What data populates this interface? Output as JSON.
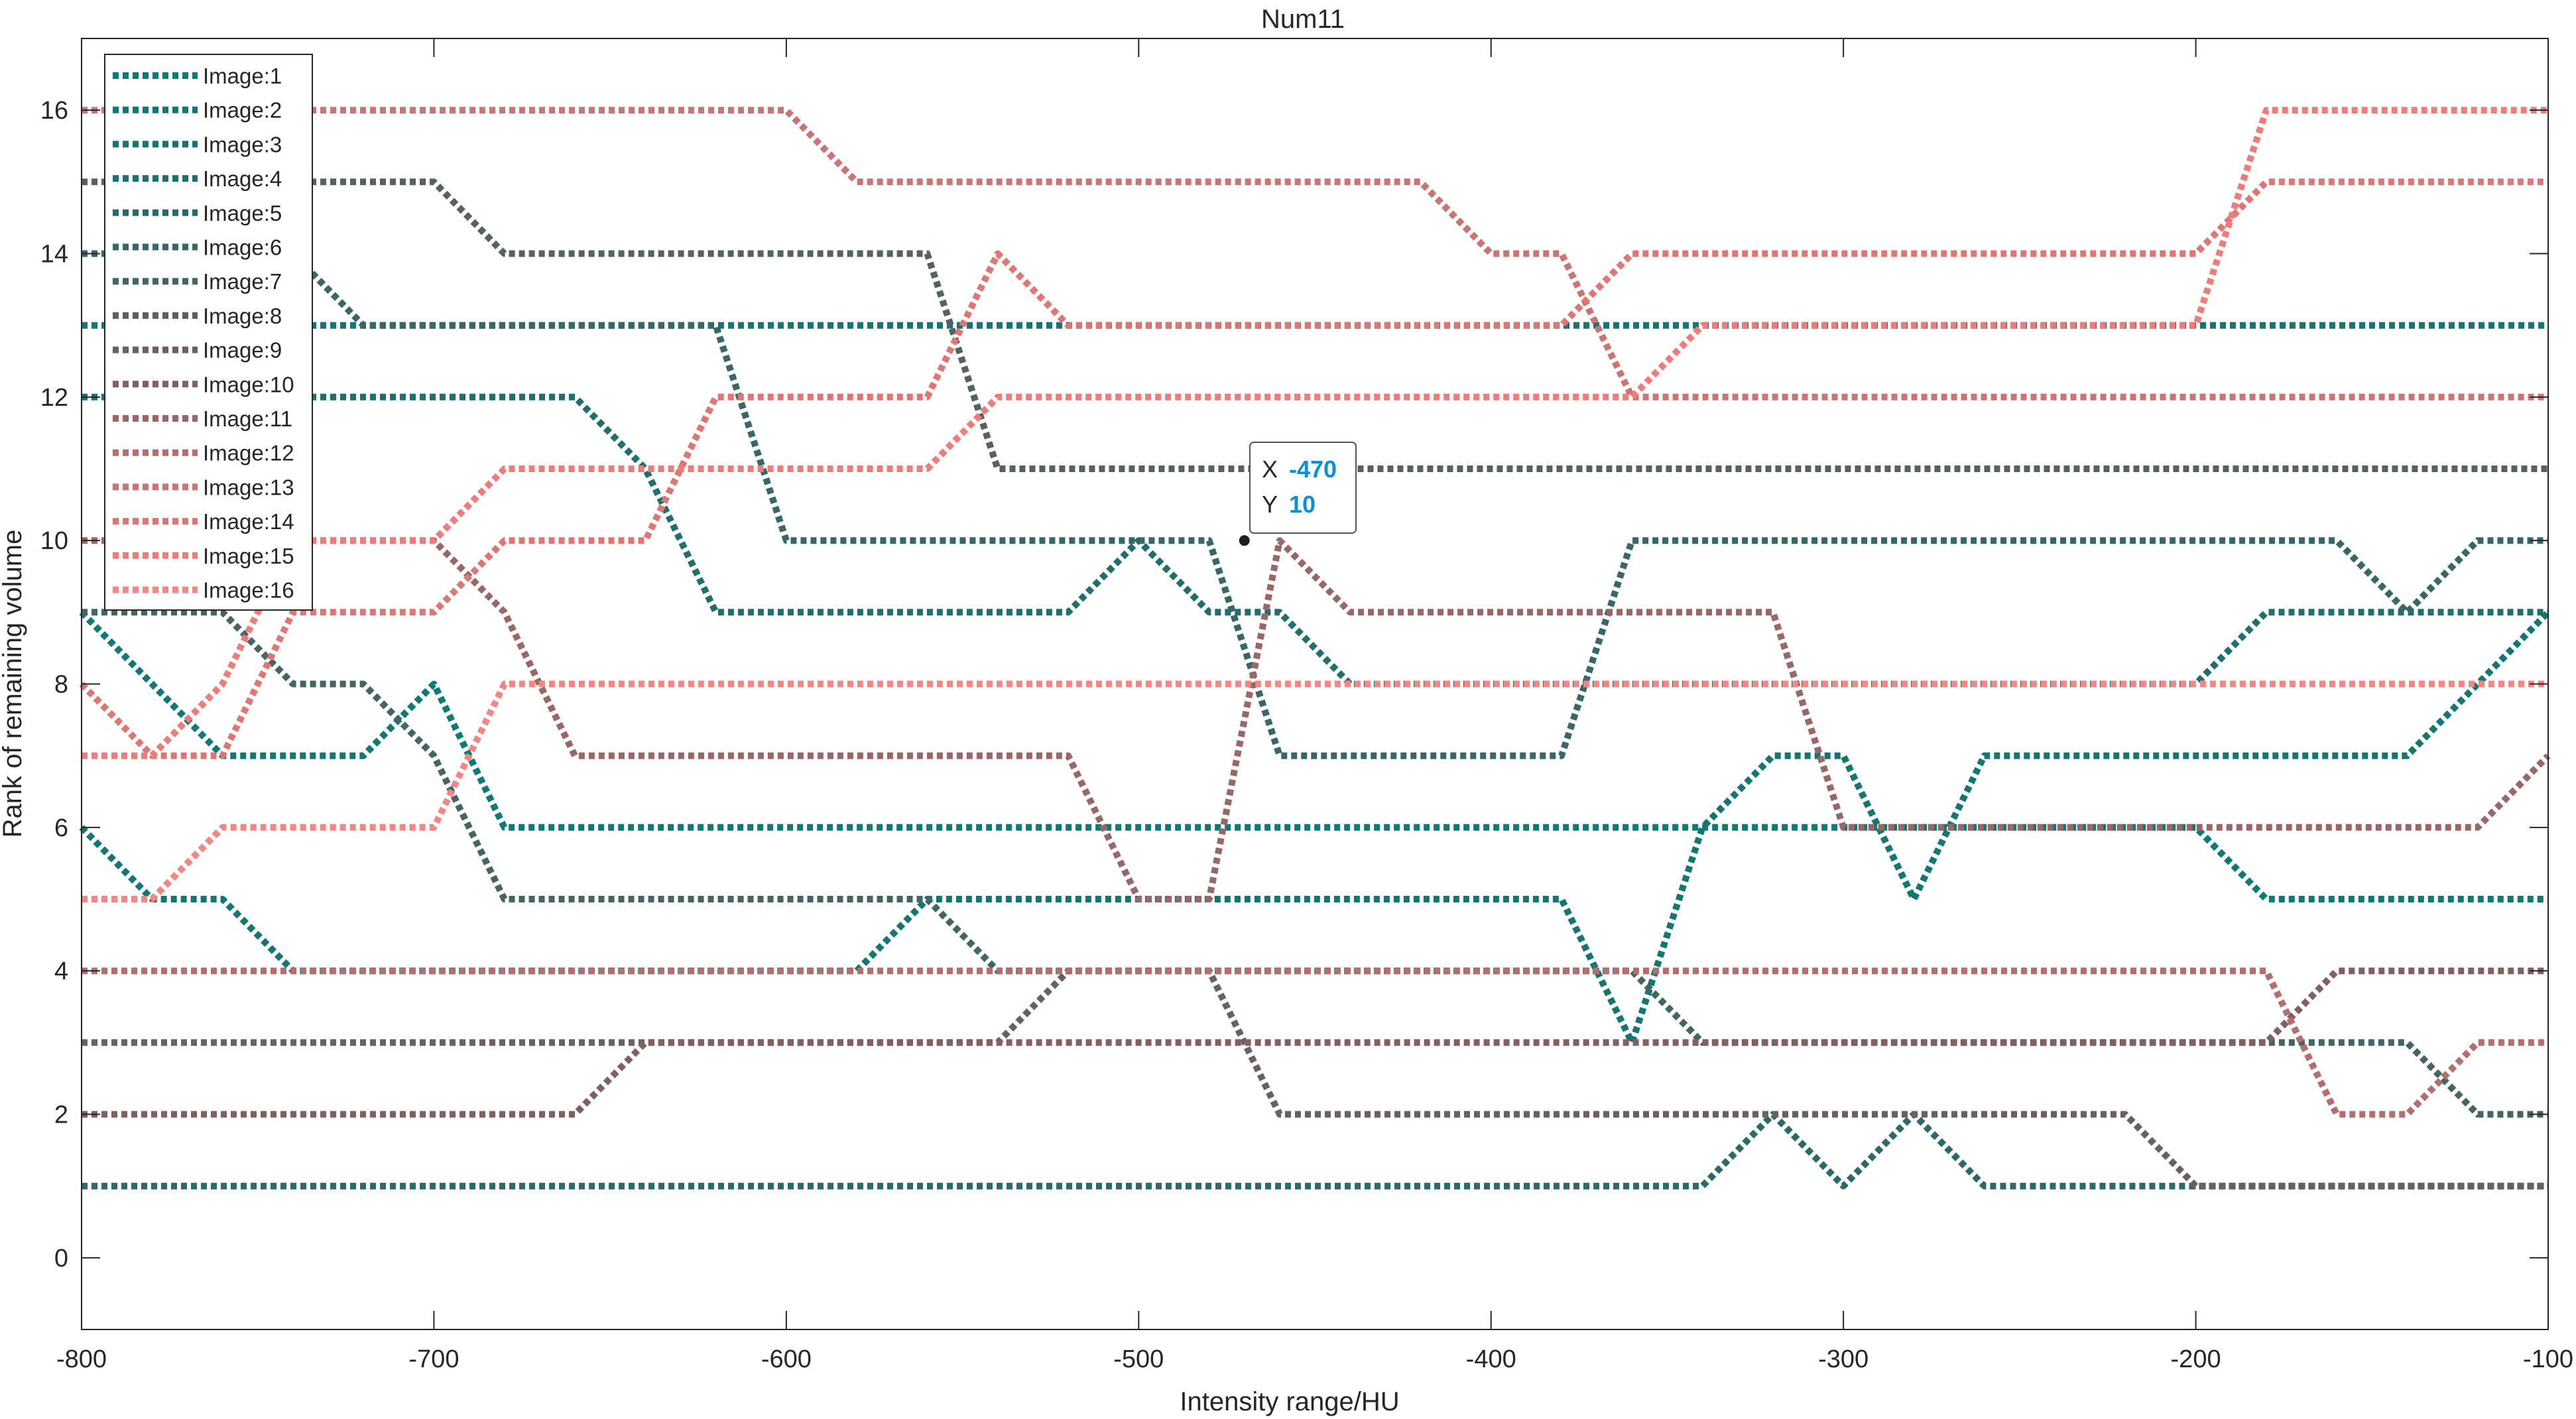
{
  "chart_data": {
    "type": "line",
    "title": "Num11",
    "xlabel": "Intensity range/HU",
    "ylabel": "Rank of remaining volume",
    "xlim": [
      -800,
      -100
    ],
    "ylim": [
      -1,
      17
    ],
    "xticks": [
      -800,
      -700,
      -600,
      -500,
      -400,
      -300,
      -200,
      -100
    ],
    "yticks": [
      0,
      2,
      4,
      6,
      8,
      10,
      12,
      14,
      16
    ],
    "grid": false,
    "legend_position": "top-left",
    "line_style": "dotted",
    "series": [
      {
        "name": "Image:1",
        "color": "#0E7A75",
        "x": [
          -800,
          -780,
          -760,
          -740,
          -720,
          -700,
          -680,
          -660,
          -640,
          -620,
          -600,
          -580,
          -560,
          -540,
          -520,
          -500,
          -480,
          -460,
          -440,
          -420,
          -400,
          -380,
          -360,
          -340,
          -320,
          -300,
          -280,
          -260,
          -240,
          -220,
          -200,
          -180,
          -160,
          -140,
          -120,
          -100
        ],
        "y": [
          9,
          8,
          7,
          7,
          7,
          8,
          6,
          6,
          6,
          6,
          6,
          6,
          6,
          6,
          6,
          6,
          6,
          6,
          6,
          6,
          6,
          6,
          6,
          6,
          6,
          6,
          6,
          6,
          6,
          6,
          6,
          5,
          5,
          5,
          5,
          5
        ]
      },
      {
        "name": "Image:2",
        "color": "#127773",
        "x": [
          -800,
          -780,
          -760,
          -740,
          -720,
          -700,
          -680,
          -660,
          -640,
          -620,
          -600,
          -580,
          -560,
          -540,
          -520,
          -500,
          -480,
          -460,
          -440,
          -420,
          -400,
          -380,
          -360,
          -340,
          -320,
          -300,
          -280,
          -260,
          -240,
          -220,
          -200,
          -180,
          -160,
          -140,
          -120,
          -100
        ],
        "y": [
          6,
          5,
          5,
          4,
          4,
          4,
          4,
          4,
          4,
          4,
          4,
          4,
          5,
          5,
          5,
          5,
          5,
          5,
          5,
          5,
          5,
          5,
          3,
          6,
          7,
          7,
          5,
          7,
          7,
          7,
          7,
          7,
          7,
          7,
          8,
          9
        ]
      },
      {
        "name": "Image:3",
        "color": "#177471",
        "x": [
          -800,
          -780,
          -760,
          -740,
          -720,
          -700,
          -680,
          -660,
          -640,
          -620,
          -600,
          -580,
          -560,
          -540,
          -520,
          -500,
          -480,
          -460,
          -440,
          -420,
          -400,
          -380,
          -360,
          -340,
          -320,
          -300,
          -280,
          -260,
          -240,
          -220,
          -200,
          -180,
          -160,
          -140,
          -120,
          -100
        ],
        "y": [
          13,
          13,
          13,
          13,
          13,
          13,
          13,
          13,
          13,
          13,
          13,
          13,
          13,
          13,
          13,
          13,
          13,
          13,
          13,
          13,
          13,
          13,
          13,
          13,
          13,
          13,
          13,
          13,
          13,
          13,
          13,
          13,
          13,
          13,
          13,
          13
        ]
      },
      {
        "name": "Image:4",
        "color": "#1F6F6D",
        "x": [
          -800,
          -780,
          -760,
          -740,
          -720,
          -700,
          -680,
          -660,
          -640,
          -620,
          -600,
          -580,
          -560,
          -540,
          -520,
          -500,
          -480,
          -460,
          -440,
          -420,
          -400,
          -380,
          -360,
          -340,
          -320,
          -300,
          -280,
          -260,
          -240,
          -220,
          -200,
          -180,
          -160,
          -140,
          -120,
          -100
        ],
        "y": [
          12,
          12,
          12,
          12,
          12,
          12,
          12,
          12,
          11,
          9,
          9,
          9,
          9,
          9,
          9,
          10,
          9,
          9,
          8,
          8,
          8,
          8,
          8,
          8,
          8,
          8,
          8,
          8,
          8,
          8,
          8,
          9,
          9,
          9,
          9,
          9
        ]
      },
      {
        "name": "Image:5",
        "color": "#2B6A69",
        "x": [
          -800,
          -780,
          -760,
          -740,
          -720,
          -700,
          -680,
          -660,
          -640,
          -620,
          -600,
          -580,
          -560,
          -540,
          -520,
          -500,
          -480,
          -460,
          -440,
          -420,
          -400,
          -380,
          -360,
          -340,
          -320,
          -300,
          -280,
          -260,
          -240,
          -220,
          -200,
          -180,
          -160,
          -140,
          -120,
          -100
        ],
        "y": [
          1,
          1,
          1,
          1,
          1,
          1,
          1,
          1,
          1,
          1,
          1,
          1,
          1,
          1,
          1,
          1,
          1,
          1,
          1,
          1,
          1,
          1,
          1,
          1,
          2,
          1,
          2,
          1,
          1,
          1,
          1,
          1,
          1,
          1,
          1,
          1
        ]
      },
      {
        "name": "Image:6",
        "color": "#376766",
        "x": [
          -800,
          -780,
          -760,
          -740,
          -720,
          -700,
          -680,
          -660,
          -640,
          -620,
          -600,
          -580,
          -560,
          -540,
          -520,
          -500,
          -480,
          -460,
          -440,
          -420,
          -400,
          -380,
          -360,
          -340,
          -320,
          -300,
          -280,
          -260,
          -240,
          -220,
          -200,
          -180,
          -160,
          -140,
          -120,
          -100
        ],
        "y": [
          14,
          14,
          14,
          14,
          13,
          13,
          13,
          13,
          13,
          13,
          10,
          10,
          10,
          10,
          10,
          10,
          10,
          7,
          7,
          7,
          7,
          7,
          10,
          10,
          10,
          10,
          10,
          10,
          10,
          10,
          10,
          10,
          10,
          9,
          10,
          10
        ]
      },
      {
        "name": "Image:7",
        "color": "#456564",
        "x": [
          -800,
          -780,
          -760,
          -740,
          -720,
          -700,
          -680,
          -660,
          -640,
          -620,
          -600,
          -580,
          -560,
          -540,
          -520,
          -500,
          -480,
          -460,
          -440,
          -420,
          -400,
          -380,
          -360,
          -340,
          -320,
          -300,
          -280,
          -260,
          -240,
          -220,
          -200,
          -180,
          -160,
          -140,
          -120,
          -100
        ],
        "y": [
          9,
          9,
          9,
          8,
          8,
          7,
          5,
          5,
          5,
          5,
          5,
          5,
          5,
          4,
          4,
          4,
          4,
          4,
          4,
          4,
          4,
          4,
          4,
          3,
          3,
          3,
          3,
          3,
          3,
          3,
          3,
          3,
          3,
          3,
          2,
          2
        ]
      },
      {
        "name": "Image:8",
        "color": "#566262",
        "x": [
          -800,
          -780,
          -760,
          -740,
          -720,
          -700,
          -680,
          -660,
          -640,
          -620,
          -600,
          -580,
          -560,
          -540,
          -520,
          -500,
          -480,
          -460,
          -440,
          -420,
          -400,
          -380,
          -360,
          -340,
          -320,
          -300,
          -280,
          -260,
          -240,
          -220,
          -200,
          -180,
          -160,
          -140,
          -120,
          -100
        ],
        "y": [
          15,
          15,
          15,
          15,
          15,
          15,
          14,
          14,
          14,
          14,
          14,
          14,
          14,
          11,
          11,
          11,
          11,
          11,
          11,
          11,
          11,
          11,
          11,
          11,
          11,
          11,
          11,
          11,
          11,
          11,
          11,
          11,
          11,
          11,
          11,
          11
        ]
      },
      {
        "name": "Image:9",
        "color": "#6A6060",
        "x": [
          -800,
          -780,
          -760,
          -740,
          -720,
          -700,
          -680,
          -660,
          -640,
          -620,
          -600,
          -580,
          -560,
          -540,
          -520,
          -500,
          -480,
          -460,
          -440,
          -420,
          -400,
          -380,
          -360,
          -340,
          -320,
          -300,
          -280,
          -260,
          -240,
          -220,
          -200,
          -180,
          -160,
          -140,
          -120,
          -100
        ],
        "y": [
          3,
          3,
          3,
          3,
          3,
          3,
          3,
          3,
          3,
          3,
          3,
          3,
          3,
          3,
          4,
          4,
          4,
          2,
          2,
          2,
          2,
          2,
          2,
          2,
          2,
          2,
          2,
          2,
          2,
          2,
          1,
          1,
          1,
          1,
          1,
          1
        ]
      },
      {
        "name": "Image:10",
        "color": "#826060",
        "x": [
          -800,
          -780,
          -760,
          -740,
          -720,
          -700,
          -680,
          -660,
          -640,
          -620,
          -600,
          -580,
          -560,
          -540,
          -520,
          -500,
          -480,
          -460,
          -440,
          -420,
          -400,
          -380,
          -360,
          -340,
          -320,
          -300,
          -280,
          -260,
          -240,
          -220,
          -200,
          -180,
          -160,
          -140,
          -120,
          -100
        ],
        "y": [
          2,
          2,
          2,
          2,
          2,
          2,
          2,
          2,
          3,
          3,
          3,
          3,
          3,
          3,
          3,
          3,
          3,
          3,
          3,
          3,
          3,
          3,
          3,
          3,
          3,
          3,
          3,
          3,
          3,
          3,
          3,
          3,
          4,
          4,
          4,
          4
        ]
      },
      {
        "name": "Image:11",
        "color": "#9B6766",
        "x": [
          -800,
          -780,
          -760,
          -740,
          -720,
          -700,
          -680,
          -660,
          -640,
          -620,
          -600,
          -580,
          -560,
          -540,
          -520,
          -500,
          -480,
          -460,
          -440,
          -420,
          -400,
          -380,
          -360,
          -340,
          -320,
          -300,
          -280,
          -260,
          -240,
          -220,
          -200,
          -180,
          -160,
          -140,
          -120,
          -100
        ],
        "y": [
          10,
          10,
          10,
          10,
          10,
          10,
          9,
          7,
          7,
          7,
          7,
          7,
          7,
          7,
          7,
          5,
          5,
          10,
          9,
          9,
          9,
          9,
          9,
          9,
          9,
          6,
          6,
          6,
          6,
          6,
          6,
          6,
          6,
          6,
          6,
          7
        ]
      },
      {
        "name": "Image:12",
        "color": "#B46E6D",
        "x": [
          -800,
          -780,
          -760,
          -740,
          -720,
          -700,
          -680,
          -660,
          -640,
          -620,
          -600,
          -580,
          -560,
          -540,
          -520,
          -500,
          -480,
          -460,
          -440,
          -420,
          -400,
          -380,
          -360,
          -340,
          -320,
          -300,
          -280,
          -260,
          -240,
          -220,
          -200,
          -180,
          -160,
          -140,
          -120,
          -100
        ],
        "y": [
          4,
          4,
          4,
          4,
          4,
          4,
          4,
          4,
          4,
          4,
          4,
          4,
          4,
          4,
          4,
          4,
          4,
          4,
          4,
          4,
          4,
          4,
          4,
          4,
          4,
          4,
          4,
          4,
          4,
          4,
          4,
          4,
          2,
          2,
          3,
          3
        ]
      },
      {
        "name": "Image:13",
        "color": "#CC7473",
        "x": [
          -800,
          -780,
          -760,
          -740,
          -720,
          -700,
          -680,
          -660,
          -640,
          -620,
          -600,
          -580,
          -560,
          -540,
          -520,
          -500,
          -480,
          -460,
          -440,
          -420,
          -400,
          -380,
          -360,
          -340,
          -320,
          -300,
          -280,
          -260,
          -240,
          -220,
          -200,
          -180,
          -160,
          -140,
          -120,
          -100
        ],
        "y": [
          16,
          16,
          16,
          16,
          16,
          16,
          16,
          16,
          16,
          16,
          16,
          15,
          15,
          15,
          15,
          15,
          15,
          15,
          15,
          15,
          14,
          14,
          12,
          12,
          12,
          12,
          12,
          12,
          12,
          12,
          12,
          12,
          12,
          12,
          12,
          12
        ]
      },
      {
        "name": "Image:14",
        "color": "#E07674",
        "x": [
          -800,
          -780,
          -760,
          -740,
          -720,
          -700,
          -680,
          -660,
          -640,
          -620,
          -600,
          -580,
          -560,
          -540,
          -520,
          -500,
          -480,
          -460,
          -440,
          -420,
          -400,
          -380,
          -360,
          -340,
          -320,
          -300,
          -280,
          -260,
          -240,
          -220,
          -200,
          -180,
          -160,
          -140,
          -120,
          -100
        ],
        "y": [
          8,
          7,
          7,
          9,
          9,
          9,
          10,
          10,
          10,
          12,
          12,
          12,
          12,
          14,
          13,
          13,
          13,
          13,
          13,
          13,
          13,
          13,
          14,
          14,
          14,
          14,
          14,
          14,
          14,
          14,
          14,
          15,
          15,
          15,
          15,
          15
        ]
      },
      {
        "name": "Image:15",
        "color": "#F07C7A",
        "x": [
          -800,
          -780,
          -760,
          -740,
          -720,
          -700,
          -680,
          -660,
          -640,
          -620,
          -600,
          -580,
          -560,
          -540,
          -520,
          -500,
          -480,
          -460,
          -440,
          -420,
          -400,
          -380,
          -360,
          -340,
          -320,
          -300,
          -280,
          -260,
          -240,
          -220,
          -200,
          -180,
          -160,
          -140,
          -120,
          -100
        ],
        "y": [
          7,
          7,
          8,
          10,
          10,
          10,
          11,
          11,
          11,
          11,
          11,
          11,
          11,
          12,
          12,
          12,
          12,
          12,
          12,
          12,
          12,
          12,
          12,
          13,
          13,
          13,
          13,
          13,
          13,
          13,
          13,
          16,
          16,
          16,
          16,
          16
        ]
      },
      {
        "name": "Image:16",
        "color": "#F48684",
        "x": [
          -800,
          -780,
          -760,
          -740,
          -720,
          -700,
          -680,
          -660,
          -640,
          -620,
          -600,
          -580,
          -560,
          -540,
          -520,
          -500,
          -480,
          -460,
          -440,
          -420,
          -400,
          -380,
          -360,
          -340,
          -320,
          -300,
          -280,
          -260,
          -240,
          -220,
          -200,
          -180,
          -160,
          -140,
          -120,
          -100
        ],
        "y": [
          5,
          5,
          6,
          6,
          6,
          6,
          8,
          8,
          8,
          8,
          8,
          8,
          8,
          8,
          8,
          8,
          8,
          8,
          8,
          8,
          8,
          8,
          8,
          8,
          8,
          8,
          8,
          8,
          8,
          8,
          8,
          8,
          8,
          8,
          8,
          8
        ]
      }
    ],
    "datatip": {
      "x_label": "X",
      "y_label": "Y",
      "x": "-470",
      "y": "10"
    }
  }
}
